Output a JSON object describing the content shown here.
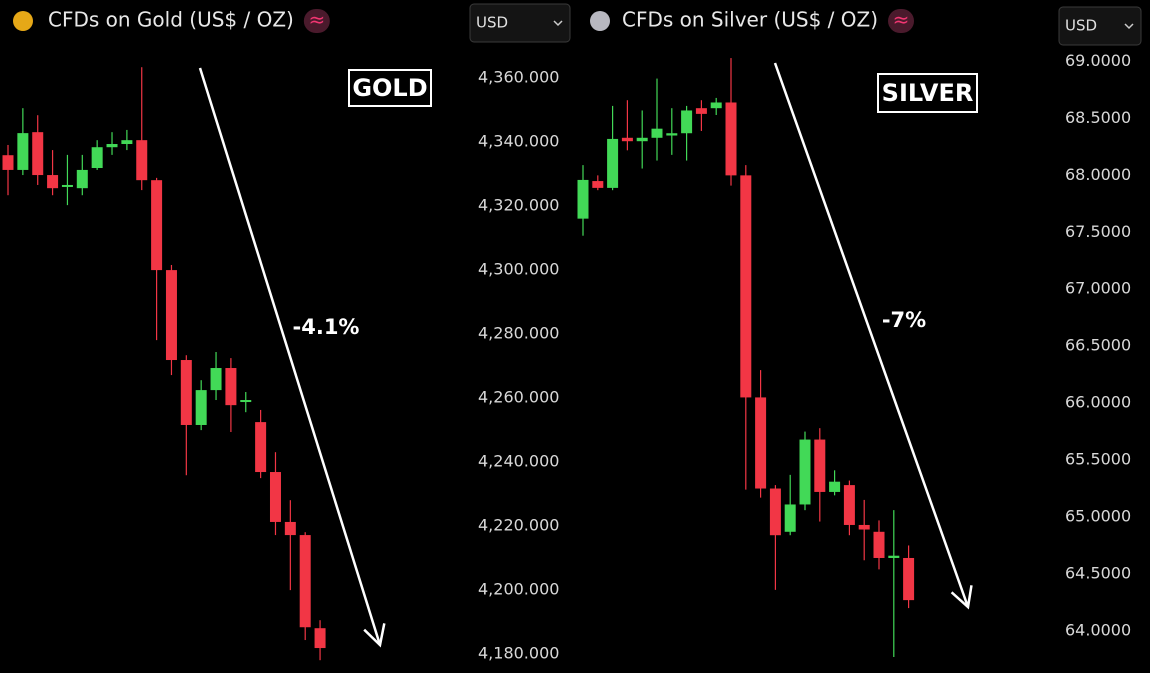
{
  "chart_data": [
    {
      "type": "candlestick",
      "title": "CFDs on Gold (US$ / OZ)",
      "symbol": "≈",
      "currency": "USD",
      "label": "GOLD",
      "annotation": "-4.1%",
      "up_color": "#42d957",
      "down_color": "#f23645",
      "icon_color": "#e6a817",
      "open": [
        4335.9,
        4331.3,
        4343.1,
        4329.7,
        4326.2,
        4325.6,
        4331.9,
        4338.4,
        4339.4,
        4340.6,
        4328.1,
        4300.0,
        4271.9,
        4251.6,
        4262.5,
        4269.4,
        4258.8,
        4252.5,
        4236.9,
        4221.3,
        4217.2,
        4188.1
      ],
      "high": [
        4339.1,
        4350.6,
        4348.4,
        4337.5,
        4336.0,
        4336.0,
        4340.6,
        4343.1,
        4343.8,
        4363.4,
        4328.8,
        4301.6,
        4273.4,
        4265.6,
        4274.4,
        4272.5,
        4261.9,
        4256.3,
        4243.1,
        4228.1,
        4218.1,
        4190.6
      ],
      "low": [
        4323.4,
        4329.7,
        4326.6,
        4323.4,
        4320.3,
        4323.4,
        4331.3,
        4336.0,
        4337.5,
        4325.0,
        4278.1,
        4267.2,
        4235.9,
        4250.0,
        4259.4,
        4249.4,
        4255.6,
        4235.0,
        4217.2,
        4200.0,
        4184.4,
        4178.1
      ],
      "close": [
        4331.3,
        4342.8,
        4329.7,
        4325.6,
        4326.6,
        4331.3,
        4338.4,
        4339.4,
        4340.6,
        4328.1,
        4300.0,
        4271.9,
        4251.6,
        4262.5,
        4269.4,
        4257.8,
        4259.4,
        4236.9,
        4221.3,
        4217.2,
        4188.4,
        4181.9
      ],
      "ylim": [
        4174.1,
        4384.4
      ],
      "yticks": [
        {
          "value": 4180,
          "label": "4,180.000"
        },
        {
          "value": 4200,
          "label": "4,200.000"
        },
        {
          "value": 4220,
          "label": "4,220.000"
        },
        {
          "value": 4240,
          "label": "4,240.000"
        },
        {
          "value": 4260,
          "label": "4,260.000"
        },
        {
          "value": 4280,
          "label": "4,280.000"
        },
        {
          "value": 4300,
          "label": "4,300.000"
        },
        {
          "value": 4320,
          "label": "4,320.000"
        },
        {
          "value": 4340,
          "label": "4,340.000"
        },
        {
          "value": 4360,
          "label": "4,360.000"
        }
      ]
    },
    {
      "type": "candlestick",
      "title": "CFDs on Silver (US$ / OZ)",
      "symbol": "≈",
      "currency": "USD",
      "label": "SILVER",
      "annotation": "-7%",
      "up_color": "#42d957",
      "down_color": "#f23645",
      "icon_color": "#b8b8c0",
      "open": [
        67.62,
        67.95,
        67.89,
        68.33,
        68.3,
        68.33,
        68.35,
        68.37,
        68.59,
        68.59,
        68.64,
        68.0,
        66.05,
        65.25,
        64.87,
        65.11,
        65.68,
        65.22,
        65.28,
        64.93,
        64.87,
        64.64,
        64.64
      ],
      "high": [
        68.09,
        68.0,
        68.61,
        68.66,
        68.57,
        68.85,
        68.59,
        68.61,
        68.66,
        68.68,
        69.03,
        68.09,
        66.29,
        65.28,
        65.37,
        65.75,
        65.78,
        65.41,
        65.32,
        65.15,
        64.97,
        65.06,
        64.75
      ],
      "low": [
        67.47,
        67.87,
        67.87,
        68.22,
        68.06,
        68.13,
        68.18,
        68.13,
        68.39,
        68.53,
        67.91,
        65.24,
        65.17,
        64.36,
        64.84,
        65.06,
        64.96,
        65.19,
        64.84,
        64.62,
        64.54,
        63.77,
        64.2
      ],
      "close": [
        67.96,
        67.89,
        68.32,
        68.3,
        68.33,
        68.41,
        68.37,
        68.57,
        68.54,
        68.64,
        68.0,
        66.05,
        65.25,
        64.84,
        65.11,
        65.68,
        65.22,
        65.31,
        64.93,
        64.89,
        64.64,
        64.66,
        64.27
      ],
      "ylim": [
        63.63,
        69.54
      ],
      "yticks": [
        {
          "value": 64,
          "label": "64.0000"
        },
        {
          "value": 64.5,
          "label": "64.5000"
        },
        {
          "value": 65,
          "label": "65.0000"
        },
        {
          "value": 65.5,
          "label": "65.5000"
        },
        {
          "value": 66,
          "label": "66.0000"
        },
        {
          "value": 66.5,
          "label": "66.5000"
        },
        {
          "value": 67,
          "label": "67.0000"
        },
        {
          "value": 67.5,
          "label": "67.5000"
        },
        {
          "value": 68,
          "label": "68.0000"
        },
        {
          "value": 68.5,
          "label": "68.5000"
        },
        {
          "value": 69,
          "label": "69.0000"
        }
      ]
    }
  ]
}
